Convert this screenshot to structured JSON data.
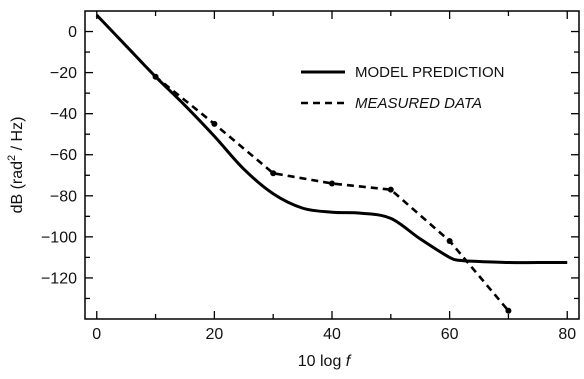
{
  "chart_data": {
    "type": "line",
    "title": "",
    "xlabel": "10 log f",
    "ylabel": "dB (rad² / Hz)",
    "xlim": [
      -2,
      82
    ],
    "ylim": [
      -140,
      10
    ],
    "xticks": [
      0,
      20,
      40,
      60,
      80
    ],
    "yticks": [
      0,
      -20,
      -40,
      -60,
      -80,
      -100,
      -120
    ],
    "legend_position": "top-right",
    "grid": false,
    "series": [
      {
        "name": "MODEL PREDICTION",
        "style": "solid",
        "color": "#000000",
        "x": [
          0,
          5,
          10,
          15,
          20,
          25,
          30,
          35,
          40,
          45,
          50,
          55,
          60,
          62,
          65,
          70,
          75,
          80
        ],
        "y": [
          8,
          -7,
          -22,
          -36,
          -51,
          -67,
          -79,
          -86,
          -88,
          -88.5,
          -91,
          -101,
          -110,
          -111.5,
          -112,
          -112.5,
          -112.5,
          -112.5
        ]
      },
      {
        "name": "MEASURED DATA",
        "style": "dashed",
        "color": "#000000",
        "markers": true,
        "x": [
          0,
          10,
          20,
          30,
          40,
          50,
          60,
          70
        ],
        "y": [
          8,
          -22,
          -45,
          -69,
          -74,
          -77,
          -102,
          -136
        ]
      }
    ]
  }
}
